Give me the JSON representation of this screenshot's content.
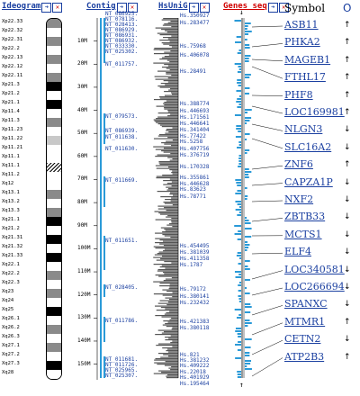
{
  "headers": {
    "ideogram": "Ideogram",
    "contig": "Contig",
    "hsunig": "HsUniG",
    "genes_seq": "Genes_seq",
    "symbol": "Symbol",
    "circle": "O"
  },
  "bands": [
    {
      "label": "Xp22.33",
      "shade": "gray"
    },
    {
      "label": "Xp22.32",
      "shade": "white"
    },
    {
      "label": "Xp22.31",
      "shade": "gray"
    },
    {
      "label": "Xp22.2",
      "shade": "white"
    },
    {
      "label": "Xp22.13",
      "shade": "gray"
    },
    {
      "label": "Xp22.12",
      "shade": "white"
    },
    {
      "label": "Xp22.11",
      "shade": "gray"
    },
    {
      "label": "Xp21.3",
      "shade": "black"
    },
    {
      "label": "Xp21.2",
      "shade": "white"
    },
    {
      "label": "Xp21.1",
      "shade": "black"
    },
    {
      "label": "Xp11.4",
      "shade": "white"
    },
    {
      "label": "Xp11.3",
      "shade": "gray"
    },
    {
      "label": "Xp11.23",
      "shade": "white"
    },
    {
      "label": "Xp11.22",
      "shade": "lightgray"
    },
    {
      "label": "Xp11.21",
      "shade": "white"
    },
    {
      "label": "Xp11.1",
      "shade": "white"
    },
    {
      "label": "Xq11.1",
      "shade": "hatch"
    },
    {
      "label": "Xq11.2",
      "shade": "white"
    },
    {
      "label": "Xq12",
      "shade": "white"
    },
    {
      "label": "Xq13.1",
      "shade": "gray"
    },
    {
      "label": "Xq13.2",
      "shade": "white"
    },
    {
      "label": "Xq13.3",
      "shade": "gray"
    },
    {
      "label": "Xq21.1",
      "shade": "black"
    },
    {
      "label": "Xq21.2",
      "shade": "white"
    },
    {
      "label": "Xq21.31",
      "shade": "black"
    },
    {
      "label": "Xq21.32",
      "shade": "white"
    },
    {
      "label": "Xq21.33",
      "shade": "black"
    },
    {
      "label": "Xq22.1",
      "shade": "white"
    },
    {
      "label": "Xq22.2",
      "shade": "gray"
    },
    {
      "label": "Xq22.3",
      "shade": "white"
    },
    {
      "label": "Xq23",
      "shade": "gray"
    },
    {
      "label": "Xq24",
      "shade": "white"
    },
    {
      "label": "Xq25",
      "shade": "black"
    },
    {
      "label": "Xq26.1",
      "shade": "white"
    },
    {
      "label": "Xq26.2",
      "shade": "gray"
    },
    {
      "label": "Xq26.3",
      "shade": "white"
    },
    {
      "label": "Xq27.1",
      "shade": "gray"
    },
    {
      "label": "Xq27.2",
      "shade": "white"
    },
    {
      "label": "Xq27.3",
      "shade": "black"
    },
    {
      "label": "Xq28",
      "shade": "white"
    }
  ],
  "mb_ticks": [
    "10M",
    "20M",
    "30M",
    "40M",
    "50M",
    "60M",
    "70M",
    "80M",
    "90M",
    "100M",
    "110M",
    "120M",
    "130M",
    "140M",
    "150M"
  ],
  "contigs": [
    "NT_086925.",
    "NT_078116.",
    "NT_028413.",
    "NT_086929.",
    "NT_086931.",
    "NT_086932.",
    "NT_033330.",
    "NT_025302.",
    "NT_011757.",
    "NT_079573.",
    "NT_086939.",
    "NT_011638.",
    "NT_011630.",
    "NT_011669.",
    "NT_011651.",
    "NT_028405.",
    "NT_011786.",
    "NT_011681.",
    "NT_011726.",
    "NT_025965.",
    "NT_025307."
  ],
  "hsunig": [
    "Hs.350927",
    "Hs.283477",
    "Hs.75968",
    "Hs.406078",
    "Hs.28491",
    "Hs.388774",
    "Hs.446693",
    "Hs.171561",
    "Hs.446641",
    "Hs.341404",
    "Hs.77422",
    "Hs.5258",
    "Hs.407756",
    "Hs.376719",
    "Hs.170328",
    "Hs.355861",
    "Hs.446628",
    "Hs.83623",
    "Hs.78771",
    "Hs.454495",
    "Hs.381039",
    "Hs.411358",
    "Hs.1787",
    "Hs.79172",
    "Hs.380141",
    "Hs.232432",
    "Hs.421383",
    "Hs.380118",
    "Hs.821",
    "Hs.381232",
    "Hs.409222",
    "Hs.22018",
    "Hs.401929",
    "Hs.195464"
  ],
  "genes": [
    {
      "symbol": "ASB11",
      "dir": "↑"
    },
    {
      "symbol": "PHKA2",
      "dir": "↑"
    },
    {
      "symbol": "MAGEB1",
      "dir": "↑"
    },
    {
      "symbol": "FTHL17",
      "dir": "↑"
    },
    {
      "symbol": "PHF8",
      "dir": "↑"
    },
    {
      "symbol": "LOC169981",
      "dir": "↑"
    },
    {
      "symbol": "NLGN3",
      "dir": "↓"
    },
    {
      "symbol": "SLC16A2",
      "dir": "↓"
    },
    {
      "symbol": "ZNF6",
      "dir": "↑"
    },
    {
      "symbol": "CAPZA1P",
      "dir": "↓"
    },
    {
      "symbol": "NXF2",
      "dir": "↓"
    },
    {
      "symbol": "ZBTB33",
      "dir": "↓"
    },
    {
      "symbol": "MCTS1",
      "dir": "↓"
    },
    {
      "symbol": "ELF4",
      "dir": "↓"
    },
    {
      "symbol": "LOC340581",
      "dir": "↓"
    },
    {
      "symbol": "LOC266694",
      "dir": "↓"
    },
    {
      "symbol": "SPANXC",
      "dir": "↓"
    },
    {
      "symbol": "MTMR1",
      "dir": "↑"
    },
    {
      "symbol": "CETN2",
      "dir": "↓"
    },
    {
      "symbol": "ATP2B3",
      "dir": "↑"
    }
  ],
  "colors": {
    "link": "#1a3fa0",
    "genes_header": "#d00000",
    "contig_line": "#2a9ad8",
    "histogram": "#555555",
    "gene_box": "#2a9ad8"
  }
}
